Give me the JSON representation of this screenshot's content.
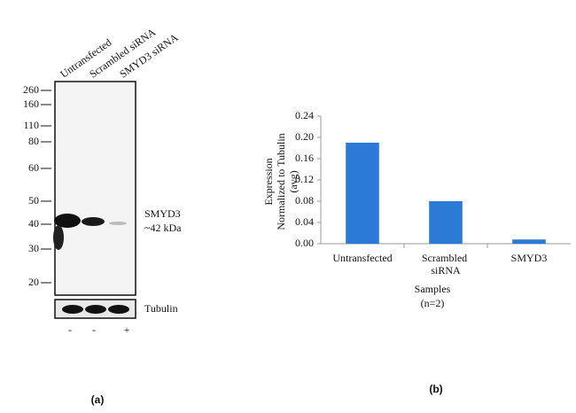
{
  "blot": {
    "lanes": [
      "Untransfected",
      "Scrambled siRNA",
      "SMYD3 siRNA"
    ],
    "markers": [
      260,
      160,
      110,
      80,
      60,
      50,
      40,
      30,
      20
    ],
    "band_label": [
      "SMYD3",
      "~42 kDa"
    ],
    "loading_label": "Tubulin",
    "treatment": [
      "-",
      "-",
      "+"
    ],
    "panel_label": "(a)"
  },
  "chart_data": {
    "type": "bar",
    "y_label": [
      "Expression",
      "Normalized to Tubulin",
      "(avg)"
    ],
    "x_label": [
      "Samples",
      "(n=2)"
    ],
    "categories": [
      "Untransfected",
      "Scrambled siRNA",
      "SMYD3"
    ],
    "values": [
      0.19,
      0.08,
      0.008
    ],
    "color": "#2b7bd6",
    "ylim": [
      0,
      0.24
    ],
    "yticks": [
      {
        "value": 0,
        "label": "0.00"
      },
      {
        "value": 0.04,
        "label": "0.04"
      },
      {
        "value": 0.08,
        "label": "0.08"
      },
      {
        "value": 0.12,
        "label": "0.12"
      },
      {
        "value": 0.16,
        "label": "0.16"
      },
      {
        "value": 0.2,
        "label": "0.20"
      },
      {
        "value": 0.24,
        "label": "0.24"
      }
    ],
    "panel_label": "(b)"
  }
}
